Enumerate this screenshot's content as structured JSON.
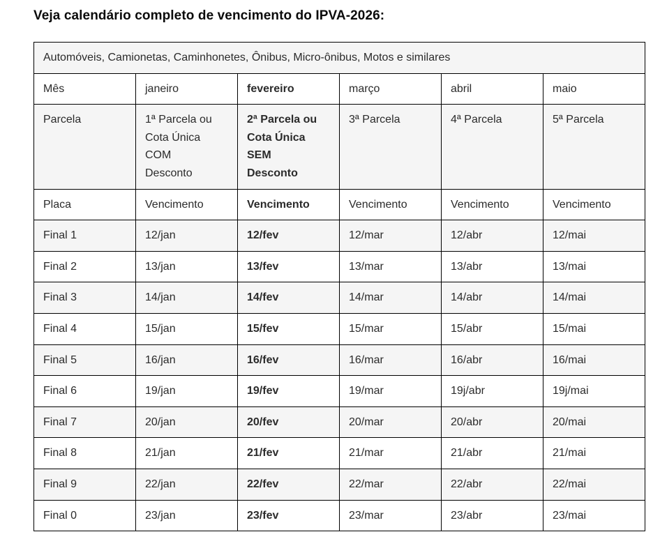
{
  "page": {
    "title": "Veja calendário completo de vencimento do IPVA-2026:"
  },
  "table": {
    "caption": "Automóveis, Camionetas, Caminhonetes, Ônibus, Micro-ônibus, Motos e similares",
    "bold_column": "fevereiro",
    "colors": {
      "alt_row_bg": "#f5f5f5",
      "border": "#000000",
      "text": "#2b2b2b"
    },
    "header_rows": [
      {
        "label": "Mês",
        "cells": [
          "janeiro",
          "fevereiro",
          "março",
          "abril",
          "maio"
        ]
      },
      {
        "label": "Parcela",
        "cells": [
          "1ª Parcela ou\nCota Única\nCOM\nDesconto",
          "2ª Parcela ou\nCota Única\nSEM\nDesconto",
          "3ª Parcela",
          "4ª Parcela",
          "5ª Parcela"
        ]
      },
      {
        "label": "Placa",
        "cells": [
          "Vencimento",
          "Vencimento",
          "Vencimento",
          "Vencimento",
          "Vencimento"
        ]
      }
    ],
    "rows": [
      {
        "label": "Final 1",
        "cells": [
          "12/jan",
          "12/fev",
          "12/mar",
          "12/abr",
          "12/mai"
        ]
      },
      {
        "label": "Final 2",
        "cells": [
          "13/jan",
          "13/fev",
          "13/mar",
          "13/abr",
          "13/mai"
        ]
      },
      {
        "label": "Final 3",
        "cells": [
          "14/jan",
          "14/fev",
          "14/mar",
          "14/abr",
          "14/mai"
        ]
      },
      {
        "label": "Final 4",
        "cells": [
          "15/jan",
          "15/fev",
          "15/mar",
          "15/abr",
          "15/mai"
        ]
      },
      {
        "label": "Final 5",
        "cells": [
          "16/jan",
          "16/fev",
          "16/mar",
          "16/abr",
          "16/mai"
        ]
      },
      {
        "label": "Final 6",
        "cells": [
          "19/jan",
          "19/fev",
          "19/mar",
          "19j/abr",
          "19j/mai"
        ]
      },
      {
        "label": "Final 7",
        "cells": [
          "20/jan",
          "20/fev",
          "20/mar",
          "20/abr",
          "20/mai"
        ]
      },
      {
        "label": "Final 8",
        "cells": [
          "21/jan",
          "21/fev",
          "21/mar",
          "21/abr",
          "21/mai"
        ]
      },
      {
        "label": "Final 9",
        "cells": [
          "22/jan",
          "22/fev",
          "22/mar",
          "22/abr",
          "22/mai"
        ]
      },
      {
        "label": "Final 0",
        "cells": [
          "23/jan",
          "23/fev",
          "23/mar",
          "23/abr",
          "23/mai"
        ]
      }
    ]
  }
}
